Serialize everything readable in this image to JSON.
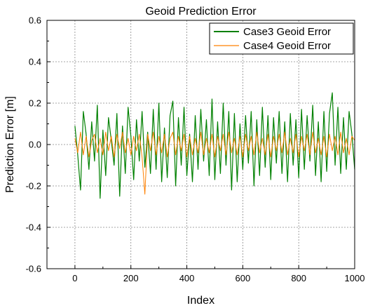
{
  "chart_data": {
    "type": "line",
    "title": "Geoid Prediction Error",
    "xlabel": "Index",
    "ylabel": "Prediction Error [m]",
    "xlim": [
      -100,
      1000
    ],
    "ylim": [
      -0.6,
      0.6
    ],
    "xticks": [
      0,
      200,
      400,
      600,
      800,
      1000
    ],
    "yticks": [
      -0.6,
      -0.4,
      -0.2,
      0.0,
      0.2,
      0.4,
      0.6
    ],
    "xtick_labels": [
      "0",
      "200",
      "400",
      "600",
      "800",
      "1000"
    ],
    "ytick_labels": [
      "-0.6",
      "-0.4",
      "-0.2",
      "0.0",
      "0.2",
      "0.4",
      "0.6"
    ],
    "grid": true,
    "legend_position": "top-right",
    "series": [
      {
        "name": "Case3 Geoid Error",
        "color": "#008000",
        "x": [
          0,
          10,
          20,
          30,
          40,
          50,
          60,
          70,
          80,
          90,
          100,
          110,
          120,
          130,
          140,
          150,
          160,
          170,
          180,
          190,
          200,
          210,
          220,
          230,
          240,
          250,
          260,
          270,
          280,
          290,
          300,
          310,
          320,
          330,
          340,
          350,
          360,
          370,
          380,
          390,
          400,
          410,
          420,
          430,
          440,
          450,
          460,
          470,
          480,
          490,
          500,
          510,
          520,
          530,
          540,
          550,
          560,
          570,
          580,
          590,
          600,
          610,
          620,
          630,
          640,
          650,
          660,
          670,
          680,
          690,
          700,
          710,
          720,
          730,
          740,
          750,
          760,
          770,
          780,
          790,
          800,
          810,
          820,
          830,
          840,
          850,
          860,
          870,
          880,
          890,
          900,
          910,
          920,
          930,
          940,
          950,
          960,
          970,
          980,
          990,
          1000
        ],
        "y": [
          0.09,
          -0.05,
          -0.22,
          0.16,
          0.05,
          -0.12,
          0.11,
          -0.08,
          0.19,
          -0.26,
          0.07,
          -0.15,
          0.13,
          0.02,
          -0.1,
          0.15,
          -0.25,
          0.09,
          -0.14,
          0.18,
          0.04,
          -0.17,
          0.12,
          -0.08,
          0.16,
          -0.11,
          0.06,
          -0.14,
          0.17,
          -0.12,
          0.2,
          -0.18,
          0.08,
          -0.16,
          0.14,
          0.21,
          -0.2,
          0.13,
          -0.1,
          0.18,
          -0.15,
          0.05,
          -0.18,
          0.14,
          -0.12,
          0.17,
          -0.08,
          0.12,
          -0.15,
          0.22,
          -0.17,
          0.11,
          -0.14,
          0.2,
          -0.1,
          0.16,
          -0.22,
          0.15,
          -0.18,
          0.1,
          -0.12,
          0.14,
          -0.09,
          0.16,
          -0.2,
          0.12,
          -0.15,
          0.18,
          -0.11,
          0.14,
          -0.17,
          0.13,
          -0.09,
          0.16,
          -0.14,
          0.11,
          -0.18,
          0.15,
          -0.1,
          0.12,
          -0.16,
          0.17,
          -0.12,
          0.14,
          -0.08,
          0.19,
          -0.15,
          0.11,
          -0.18,
          0.16,
          -0.13,
          0.15,
          0.25,
          -0.1,
          0.18,
          -0.14,
          0.13,
          -0.12,
          0.16,
          0.05,
          -0.12
        ]
      },
      {
        "name": "Case4 Geoid Error",
        "color": "#ff8000",
        "x": [
          0,
          10,
          20,
          30,
          40,
          50,
          60,
          70,
          80,
          90,
          100,
          110,
          120,
          130,
          140,
          150,
          160,
          170,
          180,
          190,
          200,
          210,
          220,
          230,
          240,
          250,
          260,
          270,
          280,
          290,
          300,
          310,
          320,
          330,
          340,
          350,
          360,
          370,
          380,
          390,
          400,
          410,
          420,
          430,
          440,
          450,
          460,
          470,
          480,
          490,
          500,
          510,
          520,
          530,
          540,
          550,
          560,
          570,
          580,
          590,
          600,
          610,
          620,
          630,
          640,
          650,
          660,
          670,
          680,
          690,
          700,
          710,
          720,
          730,
          740,
          750,
          760,
          770,
          780,
          790,
          800,
          810,
          820,
          830,
          840,
          850,
          860,
          870,
          880,
          890,
          900,
          910,
          920,
          930,
          940,
          950,
          960,
          970,
          980,
          990,
          1000
        ],
        "y": [
          0.03,
          -0.04,
          0.06,
          -0.05,
          0.04,
          -0.06,
          0.02,
          0.05,
          -0.04,
          0.03,
          -0.05,
          0.06,
          -0.03,
          0.04,
          -0.06,
          0.05,
          -0.02,
          0.06,
          -0.04,
          0.03,
          -0.05,
          0.04,
          -0.03,
          0.05,
          -0.06,
          -0.24,
          0.05,
          -0.03,
          0.06,
          -0.05,
          0.04,
          -0.04,
          0.05,
          -0.06,
          0.03,
          0.06,
          -0.05,
          0.04,
          -0.03,
          0.05,
          -0.06,
          0.04,
          -0.05,
          0.03,
          -0.04,
          0.06,
          -0.05,
          0.03,
          -0.04,
          0.05,
          -0.06,
          0.04,
          -0.03,
          0.05,
          -0.05,
          0.06,
          -0.04,
          0.03,
          -0.05,
          0.04,
          -0.06,
          0.05,
          -0.03,
          0.04,
          -0.05,
          0.06,
          -0.04,
          0.03,
          -0.05,
          0.05,
          -0.06,
          0.04,
          -0.03,
          0.05,
          -0.04,
          0.06,
          -0.05,
          0.03,
          -0.04,
          0.05,
          -0.06,
          0.04,
          -0.03,
          0.05,
          -0.05,
          0.06,
          -0.04,
          0.03,
          -0.05,
          0.04,
          -0.06,
          0.05,
          -0.03,
          0.04,
          -0.05,
          0.06,
          -0.04,
          0.03,
          -0.05,
          0.04,
          0.02
        ]
      }
    ]
  }
}
